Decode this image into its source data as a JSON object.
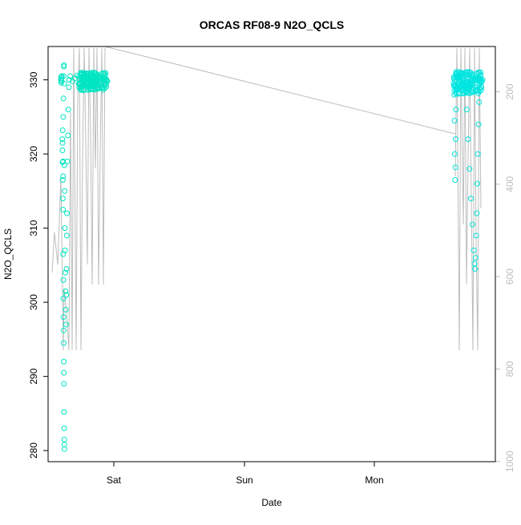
{
  "chart_data": {
    "type": "scatter",
    "title": "ORCAS RF08-9 N2O_QCLS",
    "xlabel": "Date",
    "ylabel": "N2O_QCLS",
    "ylabel_right": "",
    "x_ticks": [
      "Sat",
      "Sun",
      "Mon"
    ],
    "y_ticks": [
      280,
      290,
      300,
      310,
      320,
      330
    ],
    "y2_ticks": [
      200,
      400,
      600,
      800,
      1000
    ],
    "ylim": [
      278.5,
      334.5
    ],
    "y2lim": [
      102,
      1000.5
    ],
    "grid": false,
    "series": [
      {
        "role": "scatter",
        "color": "#00e5c3",
        "points": [
          [
            0.0,
            330.0
          ],
          [
            0.003,
            330.4
          ],
          [
            0.006,
            329.6
          ],
          [
            0.01,
            330.2
          ],
          [
            0.015,
            329.8
          ],
          [
            0.02,
            330.5
          ],
          [
            0.03,
            322.0
          ],
          [
            0.032,
            320.5
          ],
          [
            0.034,
            318.9
          ],
          [
            0.036,
            321.5
          ],
          [
            0.038,
            323.2
          ],
          [
            0.04,
            316.5
          ],
          [
            0.042,
            314.0
          ],
          [
            0.044,
            319.0
          ],
          [
            0.046,
            312.5
          ],
          [
            0.048,
            317.0
          ],
          [
            0.05,
            306.5
          ],
          [
            0.052,
            303.0
          ],
          [
            0.054,
            300.5
          ],
          [
            0.056,
            298.0
          ],
          [
            0.058,
            296.2
          ],
          [
            0.06,
            294.5
          ],
          [
            0.062,
            292.0
          ],
          [
            0.064,
            290.5
          ],
          [
            0.066,
            289.0
          ],
          [
            0.068,
            285.2
          ],
          [
            0.07,
            283.0
          ],
          [
            0.072,
            281.5
          ],
          [
            0.074,
            280.8
          ],
          [
            0.076,
            280.2
          ],
          [
            0.05,
            325.0
          ],
          [
            0.055,
            327.5
          ],
          [
            0.06,
            330.5
          ],
          [
            0.062,
            331.8
          ],
          [
            0.065,
            332.0
          ],
          [
            0.07,
            329.5
          ],
          [
            0.075,
            318.5
          ],
          [
            0.08,
            315.0
          ],
          [
            0.085,
            310.0
          ],
          [
            0.09,
            307.0
          ],
          [
            0.095,
            304.0
          ],
          [
            0.1,
            301.5
          ],
          [
            0.105,
            299.0
          ],
          [
            0.11,
            297.0
          ],
          [
            0.115,
            301.0
          ],
          [
            0.12,
            304.5
          ],
          [
            0.125,
            309.0
          ],
          [
            0.13,
            312.0
          ],
          [
            0.14,
            319.0
          ],
          [
            0.15,
            322.5
          ],
          [
            0.16,
            326.0
          ],
          [
            0.17,
            329.0
          ],
          [
            0.18,
            330.0
          ],
          [
            0.2,
            330.5
          ],
          [
            0.25,
            329.8
          ],
          [
            0.3,
            330.2
          ],
          [
            0.35,
            330.6
          ],
          [
            0.4,
            329.4
          ],
          [
            0.45,
            330.0
          ],
          [
            0.5,
            329.7
          ],
          [
            0.55,
            330.3
          ],
          [
            0.6,
            330.0
          ],
          [
            0.65,
            329.5
          ],
          [
            0.7,
            330.1
          ],
          [
            0.75,
            329.6
          ],
          [
            0.8,
            330.4
          ],
          [
            0.85,
            329.9
          ],
          [
            0.9,
            330.0
          ],
          [
            0.95,
            329.5
          ],
          [
            1.0,
            329.8
          ]
        ]
      },
      {
        "role": "scatter",
        "color": "#00e5e0",
        "points": [
          [
            0.0,
            329.5
          ],
          [
            0.01,
            330.2
          ],
          [
            0.02,
            328.0
          ],
          [
            0.03,
            324.5
          ],
          [
            0.04,
            320.0
          ],
          [
            0.05,
            316.5
          ],
          [
            0.06,
            318.2
          ],
          [
            0.07,
            322.0
          ],
          [
            0.08,
            326.0
          ],
          [
            0.09,
            329.0
          ],
          [
            0.1,
            330.5
          ],
          [
            0.15,
            329.0
          ],
          [
            0.2,
            330.0
          ],
          [
            0.25,
            331.0
          ],
          [
            0.3,
            329.5
          ],
          [
            0.35,
            330.2
          ],
          [
            0.4,
            328.5
          ],
          [
            0.45,
            326.0
          ],
          [
            0.5,
            322.0
          ],
          [
            0.55,
            318.0
          ],
          [
            0.6,
            314.0
          ],
          [
            0.65,
            310.5
          ],
          [
            0.7,
            307.0
          ],
          [
            0.72,
            305.2
          ],
          [
            0.74,
            304.5
          ],
          [
            0.76,
            306.0
          ],
          [
            0.78,
            309.0
          ],
          [
            0.8,
            312.0
          ],
          [
            0.82,
            316.0
          ],
          [
            0.84,
            320.0
          ],
          [
            0.86,
            324.0
          ],
          [
            0.88,
            327.0
          ],
          [
            0.9,
            329.5
          ],
          [
            0.93,
            330.5
          ],
          [
            0.96,
            329.0
          ],
          [
            1.0,
            330.0
          ]
        ]
      }
    ],
    "altitude_color": "#bdbdbd"
  }
}
